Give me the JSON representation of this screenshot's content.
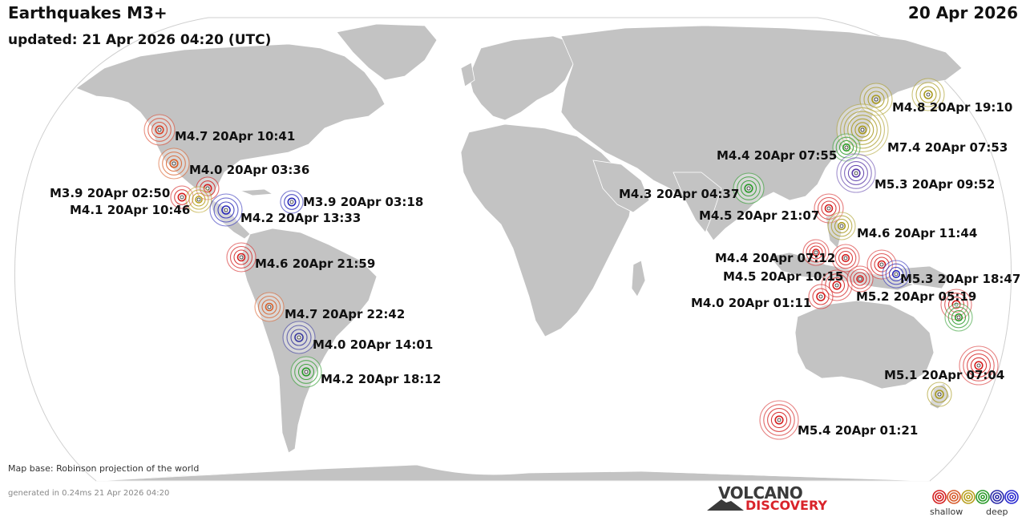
{
  "header": {
    "title": "Earthquakes M3+",
    "updated": "updated: 21 Apr 2026 04:20 (UTC)",
    "date": "20 Apr 2026"
  },
  "footer": {
    "map_base": "Map base: Robinson projection of the world",
    "generated": "generated in 0.24ms 21 Apr 2026 04:20"
  },
  "logo": {
    "line1": "VOLCANO",
    "line2": "DISCOVERY"
  },
  "legend": {
    "shallow": "shallow",
    "deep": "deep",
    "colors": [
      "#d42020",
      "#d65a2a",
      "#b8a020",
      "#2a9a2a",
      "#2a2aa8",
      "#2a2ad0"
    ]
  },
  "colors": {
    "land": "#c3c3c3",
    "ocean": "#ffffff",
    "border": "#ffffff"
  },
  "quakes": [
    {
      "label": "M4.7 20Apr 10:41",
      "color": "#d9442a"
    },
    {
      "label": "M4.0 20Apr 03:36",
      "color": "#d9602a"
    },
    {
      "label": "M3.9 20Apr 02:50",
      "color": "#d42020"
    },
    {
      "label": "M4.1 20Apr 10:46",
      "color": "#b8a020"
    },
    {
      "label": "M4.2 20Apr 13:33",
      "color": "#2a2ab8"
    },
    {
      "label": "M3.9 20Apr 03:18",
      "color": "#2a2ab8"
    },
    {
      "label": "M4.6 20Apr 21:59",
      "color": "#d42020"
    },
    {
      "label": "M4.7 20Apr 22:42",
      "color": "#d9602a"
    },
    {
      "label": "M4.0 20Apr 14:01",
      "color": "#3a3aa0"
    },
    {
      "label": "M4.2 20Apr 18:12",
      "color": "#2a9a2a"
    },
    {
      "label": "M4.8 20Apr 19:10",
      "color": "#a89a20"
    },
    {
      "label": "M7.4 20Apr 07:53",
      "color": "#a89a20"
    },
    {
      "label": "M4.4 20Apr 07:55",
      "color": "#2a9a2a"
    },
    {
      "label": "M5.3 20Apr 09:52",
      "color": "#5a3aa8"
    },
    {
      "label": "M4.3 20Apr 04:37",
      "color": "#2a9a2a"
    },
    {
      "label": "M4.5 20Apr 21:07",
      "color": "#d42020"
    },
    {
      "label": "M4.6 20Apr 11:44",
      "color": "#a89a20"
    },
    {
      "label": "M4.4 20Apr 07:12",
      "color": "#d42020"
    },
    {
      "label": "M4.5 20Apr 10:15",
      "color": "#d42020"
    },
    {
      "label": "M5.3 20Apr 18:47",
      "color": "#2a2ab8"
    },
    {
      "label": "M4.0 20Apr 01:11",
      "color": "#d42020"
    },
    {
      "label": "M5.2 20Apr 05:19",
      "color": "#d42020"
    },
    {
      "label": "M5.1 20Apr 07:04",
      "color": "#d42020"
    },
    {
      "label": "M5.4 20Apr 01:21",
      "color": "#d42020"
    }
  ]
}
